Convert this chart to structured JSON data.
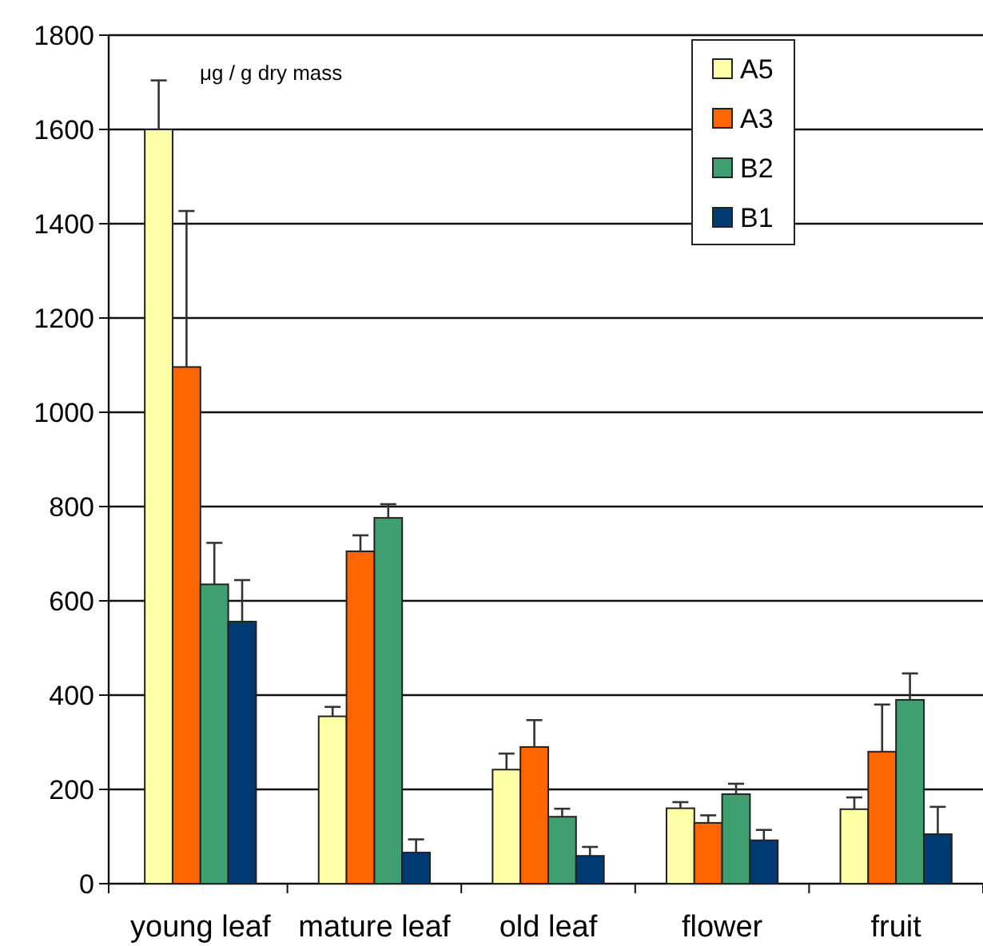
{
  "chart_data": {
    "type": "bar",
    "categories": [
      "young leaf",
      "mature leaf",
      "old leaf",
      "flower",
      "fruit"
    ],
    "series": [
      {
        "name": "A5",
        "color": "#ffffa8",
        "values": [
          1600,
          355,
          242,
          160,
          158
        ],
        "errors": [
          [
            1600,
            1704
          ],
          [
            355,
            375
          ],
          [
            242,
            276
          ],
          [
            160,
            173
          ],
          [
            158,
            183
          ]
        ]
      },
      {
        "name": "A3",
        "color": "#ff6600",
        "values": [
          1096,
          705,
          290,
          129,
          280
        ],
        "errors": [
          [
            1096,
            1427
          ],
          [
            705,
            739
          ],
          [
            290,
            347
          ],
          [
            129,
            145
          ],
          [
            280,
            380
          ]
        ]
      },
      {
        "name": "B2",
        "color": "#3f9f70",
        "values": [
          635,
          776,
          142,
          190,
          390
        ],
        "errors": [
          [
            635,
            723
          ],
          [
            776,
            805
          ],
          [
            142,
            159
          ],
          [
            190,
            212
          ],
          [
            390,
            446
          ]
        ]
      },
      {
        "name": "B1",
        "color": "#003a73",
        "values": [
          556,
          66,
          59,
          92,
          105
        ],
        "errors": [
          [
            556,
            644
          ],
          [
            66,
            94
          ],
          [
            59,
            78
          ],
          [
            92,
            114
          ],
          [
            105,
            163
          ]
        ]
      }
    ],
    "ylim": [
      0,
      1800
    ],
    "yticks": [
      0,
      200,
      400,
      600,
      800,
      1000,
      1200,
      1400,
      1600,
      1800
    ],
    "grid": "y",
    "legend": "top right",
    "annotations": [
      "μg / g dry mass"
    ]
  }
}
